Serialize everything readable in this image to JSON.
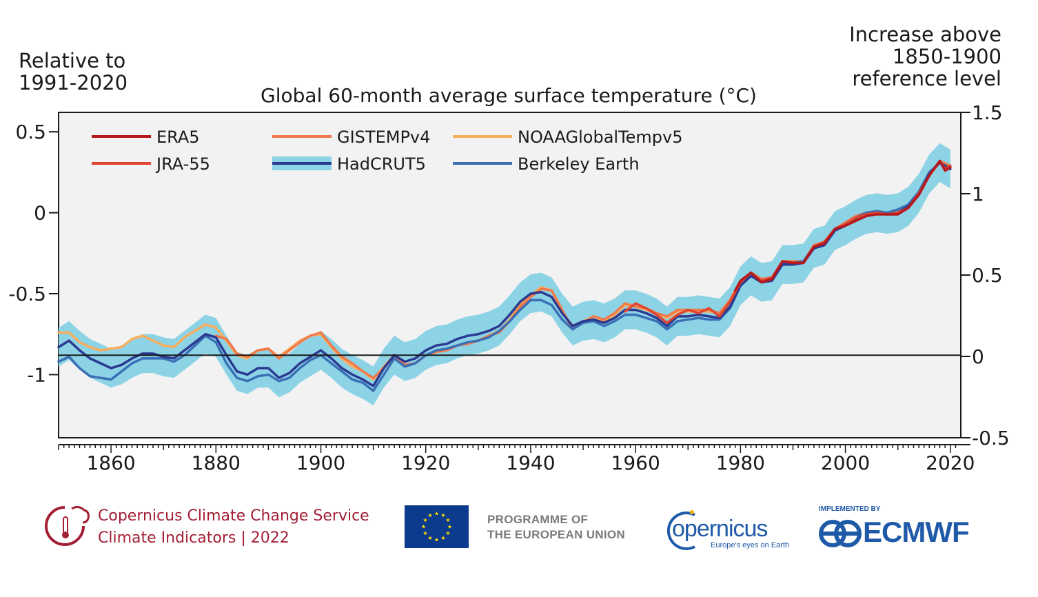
{
  "header": {
    "left_axis_note_line1": "Relative to",
    "left_axis_note_line2": "1991-2020",
    "right_axis_note_line1": "Increase above",
    "right_axis_note_line2": "1850-1900",
    "right_axis_note_line3": "reference level"
  },
  "chart_data": {
    "type": "line",
    "title": "Global 60-month average surface temperature (°C)",
    "xlabel": "",
    "ylabel": "Relative to 1991-2020",
    "y2label": "Increase above 1850-1900 reference level",
    "xlim": [
      1850,
      2022
    ],
    "ylim": [
      -1.39,
      0.62
    ],
    "y2lim": [
      -0.5,
      1.5
    ],
    "x_ticks": [
      1860,
      1880,
      1900,
      1920,
      1940,
      1960,
      1980,
      2000,
      2020
    ],
    "y_ticks": [
      0.5,
      0,
      -0.5,
      -1
    ],
    "y_tick_labels": [
      "0.5",
      "0",
      "-0.5",
      "-1"
    ],
    "y2_ticks": [
      1.5,
      1,
      0.5,
      0,
      -0.5
    ],
    "y2_tick_labels": [
      "1.5",
      "1",
      "0.5",
      "0",
      "-0.5"
    ],
    "reference_line": -0.88,
    "grid": false,
    "legend_position": "top-left",
    "background": "#f2f2f2",
    "series": [
      {
        "name": "ERA5",
        "color": "#b5191e",
        "x": [
          1979,
          1980,
          1982,
          1984,
          1986,
          1988,
          1990,
          1992,
          1994,
          1996,
          1998,
          2000,
          2002,
          2004,
          2006,
          2008,
          2010,
          2012,
          2014,
          2016,
          2018,
          2019,
          2020
        ],
        "y": [
          -0.48,
          -0.42,
          -0.37,
          -0.43,
          -0.41,
          -0.3,
          -0.31,
          -0.31,
          -0.21,
          -0.19,
          -0.1,
          -0.08,
          -0.05,
          -0.02,
          -0.01,
          -0.01,
          -0.01,
          0.03,
          0.11,
          0.23,
          0.32,
          0.26,
          0.28
        ]
      },
      {
        "name": "JRA-55",
        "color": "#e0452f",
        "x": [
          1958,
          1960,
          1962,
          1964,
          1966,
          1968,
          1970,
          1972,
          1974,
          1976,
          1978,
          1980,
          1982,
          1984,
          1986,
          1988,
          1990,
          1992,
          1994,
          1996,
          1998,
          2000,
          2002,
          2004,
          2006,
          2008,
          2010,
          2012,
          2014,
          2016,
          2018,
          2019,
          2020
        ],
        "y": [
          -0.61,
          -0.56,
          -0.59,
          -0.63,
          -0.68,
          -0.63,
          -0.6,
          -0.62,
          -0.59,
          -0.64,
          -0.55,
          -0.43,
          -0.37,
          -0.42,
          -0.4,
          -0.3,
          -0.31,
          -0.31,
          -0.21,
          -0.18,
          -0.1,
          -0.07,
          -0.03,
          -0.01,
          0.0,
          -0.01,
          0.0,
          0.03,
          0.12,
          0.23,
          0.32,
          0.27,
          0.29
        ]
      },
      {
        "name": "GISTEMPv4",
        "color": "#f07a4a",
        "x": [
          1880,
          1882,
          1884,
          1886,
          1888,
          1890,
          1892,
          1894,
          1896,
          1898,
          1900,
          1902,
          1904,
          1906,
          1908,
          1910,
          1912,
          1914,
          1916,
          1918,
          1920,
          1922,
          1924,
          1926,
          1928,
          1930,
          1932,
          1934,
          1936,
          1938,
          1940,
          1942,
          1944,
          1946,
          1948,
          1950,
          1952,
          1954,
          1956,
          1958,
          1960,
          1962,
          1964,
          1966,
          1968,
          1970,
          1972,
          1974,
          1976,
          1978,
          1980,
          1982,
          1984,
          1986,
          1988,
          1990,
          1992,
          1994,
          1996,
          1998,
          2000,
          2002,
          2004,
          2006,
          2008,
          2010,
          2012,
          2014,
          2016,
          2018,
          2020
        ],
        "y": [
          -0.76,
          -0.78,
          -0.87,
          -0.89,
          -0.85,
          -0.84,
          -0.9,
          -0.85,
          -0.8,
          -0.76,
          -0.74,
          -0.82,
          -0.89,
          -0.93,
          -0.98,
          -1.02,
          -0.96,
          -0.88,
          -0.94,
          -0.93,
          -0.88,
          -0.86,
          -0.85,
          -0.82,
          -0.81,
          -0.79,
          -0.76,
          -0.74,
          -0.67,
          -0.58,
          -0.52,
          -0.47,
          -0.48,
          -0.6,
          -0.72,
          -0.68,
          -0.64,
          -0.66,
          -0.62,
          -0.56,
          -0.58,
          -0.59,
          -0.62,
          -0.64,
          -0.6,
          -0.6,
          -0.6,
          -0.6,
          -0.62,
          -0.54,
          -0.42,
          -0.37,
          -0.41,
          -0.4,
          -0.3,
          -0.3,
          -0.3,
          -0.2,
          -0.18,
          -0.1,
          -0.06,
          -0.02,
          0.0,
          0.01,
          -0.01,
          0.01,
          0.04,
          0.12,
          0.24,
          0.32,
          0.29
        ]
      },
      {
        "name": "NOAAGlobalTempv5",
        "color": "#f9ad5d",
        "x": [
          1850,
          1852,
          1854,
          1856,
          1858,
          1860,
          1862,
          1864,
          1866,
          1868,
          1870,
          1872,
          1874,
          1876,
          1878,
          1880,
          1882,
          1884,
          1886,
          1888,
          1890,
          1892,
          1894,
          1896,
          1898,
          1900,
          1902,
          1904,
          1906,
          1908,
          1910,
          1912,
          1914,
          1916,
          1918,
          1920,
          1922,
          1924,
          1926,
          1928,
          1930,
          1932,
          1934,
          1936,
          1938,
          1940,
          1942,
          1944,
          1946,
          1948,
          1950,
          1952,
          1954,
          1956,
          1958,
          1960,
          1962,
          1964,
          1966,
          1968,
          1970,
          1972,
          1974,
          1976,
          1978,
          1980,
          1982,
          1984,
          1986,
          1988,
          1990,
          1992,
          1994,
          1996,
          1998,
          2000,
          2002,
          2004,
          2006,
          2008,
          2010,
          2012,
          2014,
          2016,
          2018,
          2020
        ],
        "y": [
          -0.74,
          -0.74,
          -0.8,
          -0.83,
          -0.85,
          -0.84,
          -0.83,
          -0.78,
          -0.76,
          -0.79,
          -0.82,
          -0.83,
          -0.77,
          -0.73,
          -0.69,
          -0.71,
          -0.79,
          -0.88,
          -0.9,
          -0.85,
          -0.84,
          -0.89,
          -0.84,
          -0.79,
          -0.76,
          -0.75,
          -0.83,
          -0.9,
          -0.95,
          -0.98,
          -1.03,
          -0.95,
          -0.88,
          -0.94,
          -0.93,
          -0.88,
          -0.86,
          -0.85,
          -0.82,
          -0.81,
          -0.79,
          -0.76,
          -0.73,
          -0.66,
          -0.57,
          -0.51,
          -0.46,
          -0.48,
          -0.61,
          -0.7,
          -0.67,
          -0.64,
          -0.67,
          -0.63,
          -0.57,
          -0.58,
          -0.6,
          -0.62,
          -0.65,
          -0.61,
          -0.61,
          -0.61,
          -0.61,
          -0.62,
          -0.54,
          -0.43,
          -0.38,
          -0.42,
          -0.41,
          -0.31,
          -0.31,
          -0.31,
          -0.21,
          -0.19,
          -0.1,
          -0.07,
          -0.03,
          -0.01,
          0.0,
          -0.01,
          0.0,
          0.03,
          0.11,
          0.23,
          0.31,
          0.28
        ]
      },
      {
        "name": "HadCRUT5",
        "color": "#2b3990",
        "band_color": "#8dd3e6",
        "band_halfwidth": 0.12,
        "x": [
          1850,
          1852,
          1854,
          1856,
          1858,
          1860,
          1862,
          1864,
          1866,
          1868,
          1870,
          1872,
          1874,
          1876,
          1878,
          1880,
          1882,
          1884,
          1886,
          1888,
          1890,
          1892,
          1894,
          1896,
          1898,
          1900,
          1902,
          1904,
          1906,
          1908,
          1910,
          1912,
          1914,
          1916,
          1918,
          1920,
          1922,
          1924,
          1926,
          1928,
          1930,
          1932,
          1934,
          1936,
          1938,
          1940,
          1942,
          1944,
          1946,
          1948,
          1950,
          1952,
          1954,
          1956,
          1958,
          1960,
          1962,
          1964,
          1966,
          1968,
          1970,
          1972,
          1974,
          1976,
          1978,
          1980,
          1982,
          1984,
          1986,
          1988,
          1990,
          1992,
          1994,
          1996,
          1998,
          2000,
          2002,
          2004,
          2006,
          2008,
          2010,
          2012,
          2014,
          2016,
          2018,
          2020
        ],
        "y": [
          -0.83,
          -0.79,
          -0.85,
          -0.9,
          -0.93,
          -0.96,
          -0.94,
          -0.9,
          -0.87,
          -0.87,
          -0.89,
          -0.9,
          -0.85,
          -0.8,
          -0.75,
          -0.77,
          -0.88,
          -0.98,
          -1.0,
          -0.96,
          -0.96,
          -1.02,
          -0.99,
          -0.93,
          -0.89,
          -0.85,
          -0.9,
          -0.96,
          -1.0,
          -1.03,
          -1.07,
          -0.96,
          -0.88,
          -0.92,
          -0.9,
          -0.85,
          -0.82,
          -0.81,
          -0.78,
          -0.76,
          -0.75,
          -0.73,
          -0.7,
          -0.63,
          -0.55,
          -0.5,
          -0.49,
          -0.52,
          -0.62,
          -0.7,
          -0.67,
          -0.66,
          -0.68,
          -0.65,
          -0.6,
          -0.6,
          -0.62,
          -0.65,
          -0.7,
          -0.64,
          -0.64,
          -0.63,
          -0.64,
          -0.65,
          -0.58,
          -0.45,
          -0.39,
          -0.43,
          -0.42,
          -0.32,
          -0.32,
          -0.31,
          -0.22,
          -0.2,
          -0.11,
          -0.08,
          -0.04,
          -0.01,
          0.0,
          -0.01,
          0.0,
          0.04,
          0.12,
          0.24,
          0.31,
          0.27
        ]
      },
      {
        "name": "Berkeley Earth",
        "color": "#3a6fb5",
        "x": [
          1850,
          1852,
          1854,
          1856,
          1858,
          1860,
          1862,
          1864,
          1866,
          1868,
          1870,
          1872,
          1874,
          1876,
          1878,
          1880,
          1882,
          1884,
          1886,
          1888,
          1890,
          1892,
          1894,
          1896,
          1898,
          1900,
          1902,
          1904,
          1906,
          1908,
          1910,
          1912,
          1914,
          1916,
          1918,
          1920,
          1922,
          1924,
          1926,
          1928,
          1930,
          1932,
          1934,
          1936,
          1938,
          1940,
          1942,
          1944,
          1946,
          1948,
          1950,
          1952,
          1954,
          1956,
          1958,
          1960,
          1962,
          1964,
          1966,
          1968,
          1970,
          1972,
          1974,
          1976,
          1978,
          1980,
          1982,
          1984,
          1986,
          1988,
          1990,
          1992,
          1994,
          1996,
          1998,
          2000,
          2002,
          2004,
          2006,
          2008,
          2010,
          2012,
          2014,
          2016,
          2018,
          2020
        ],
        "y": [
          -0.92,
          -0.89,
          -0.96,
          -1.01,
          -1.02,
          -1.03,
          -0.98,
          -0.93,
          -0.9,
          -0.9,
          -0.9,
          -0.92,
          -0.88,
          -0.82,
          -0.76,
          -0.8,
          -0.93,
          -1.02,
          -1.04,
          -1.01,
          -1.0,
          -1.04,
          -1.02,
          -0.96,
          -0.91,
          -0.88,
          -0.93,
          -0.98,
          -1.03,
          -1.05,
          -1.1,
          -1.0,
          -0.9,
          -0.95,
          -0.93,
          -0.88,
          -0.85,
          -0.84,
          -0.82,
          -0.8,
          -0.79,
          -0.77,
          -0.73,
          -0.67,
          -0.6,
          -0.54,
          -0.54,
          -0.57,
          -0.66,
          -0.72,
          -0.68,
          -0.67,
          -0.7,
          -0.67,
          -0.63,
          -0.63,
          -0.65,
          -0.67,
          -0.72,
          -0.67,
          -0.66,
          -0.65,
          -0.66,
          -0.66,
          -0.59,
          -0.45,
          -0.39,
          -0.43,
          -0.41,
          -0.31,
          -0.31,
          -0.3,
          -0.21,
          -0.19,
          -0.1,
          -0.07,
          -0.03,
          0.0,
          0.01,
          0.0,
          0.02,
          0.05,
          0.13,
          0.25,
          0.31,
          0.27
        ]
      }
    ]
  },
  "footer": {
    "c3s_name": "Copernicus Climate Change Service",
    "c3s_sub": "Climate Indicators | 2022",
    "eu_line1": "PROGRAMME OF",
    "eu_line2": "THE EUROPEAN UNION",
    "copernicus_word": "opernicus",
    "copernicus_tagline": "Europe's eyes on Earth",
    "ecmwf_implemented": "IMPLEMENTED BY",
    "ecmwf_name": "ECMWF"
  }
}
